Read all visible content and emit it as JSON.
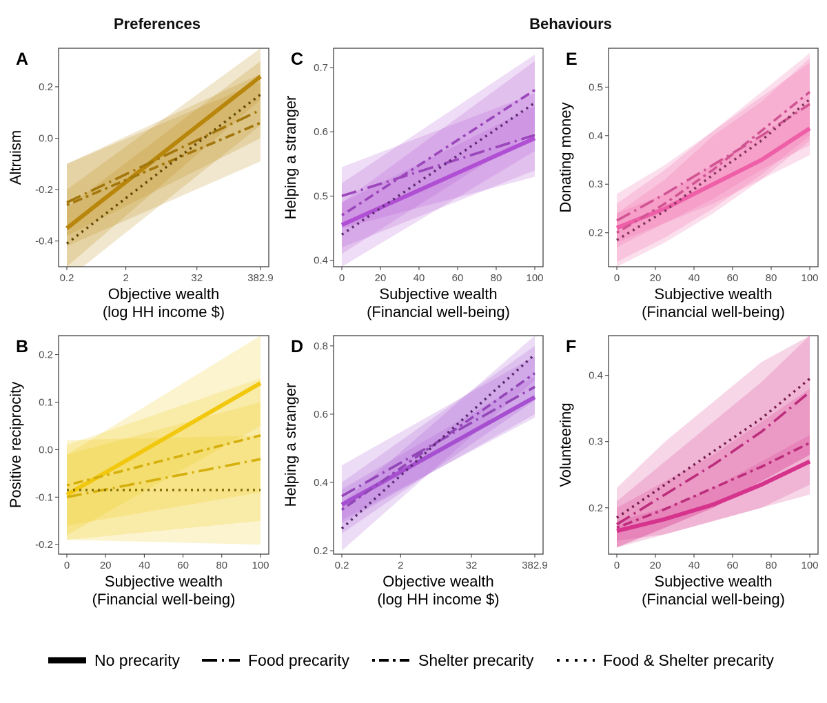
{
  "headers": {
    "left": "Preferences",
    "right": "Behaviours"
  },
  "legend": [
    {
      "label": "No precarity",
      "style": "solid"
    },
    {
      "label": "Food precarity",
      "style": "longdash-dot"
    },
    {
      "label": "Shelter precarity",
      "style": "dot-dash"
    },
    {
      "label": "Food & Shelter precarity",
      "style": "dotted"
    }
  ],
  "chart_data": [
    {
      "panel": "A",
      "type": "line",
      "color": "#b8860b",
      "xlabel": [
        "Objective wealth",
        "(log HH income $)"
      ],
      "ylabel": "Altruism",
      "x_scale": "log",
      "xlim": [
        0.2,
        382.9
      ],
      "ylim": [
        -0.5,
        0.35
      ],
      "xticks": [
        0.2,
        2,
        32,
        382.9
      ],
      "xtick_labels": [
        "0.2",
        "2",
        "32",
        "382.9"
      ],
      "yticks": [
        -0.4,
        -0.2,
        0.0,
        0.2
      ],
      "ytick_labels": [
        "-0.4",
        "-0.2",
        "0.0",
        "0.2"
      ],
      "series": [
        {
          "name": "No precarity",
          "x": [
            0.2,
            382.9
          ],
          "y": [
            -0.35,
            0.24
          ],
          "ci_low": [
            -0.5,
            0.15
          ],
          "ci_high": [
            -0.2,
            0.35
          ]
        },
        {
          "name": "Food precarity",
          "x": [
            0.2,
            382.9
          ],
          "y": [
            -0.25,
            0.11
          ],
          "ci_low": [
            -0.38,
            0.0
          ],
          "ci_high": [
            -0.1,
            0.25
          ]
        },
        {
          "name": "Shelter precarity",
          "x": [
            0.2,
            382.9
          ],
          "y": [
            -0.26,
            0.06
          ],
          "ci_low": [
            -0.42,
            -0.09
          ],
          "ci_high": [
            -0.1,
            0.22
          ]
        },
        {
          "name": "Food & Shelter precarity",
          "x": [
            0.2,
            382.9
          ],
          "y": [
            -0.41,
            0.17
          ],
          "ci_low": [
            -0.55,
            0.05
          ],
          "ci_high": [
            -0.27,
            0.3
          ]
        }
      ]
    },
    {
      "panel": "B",
      "type": "line",
      "color": "#f2c80f",
      "xlabel": [
        "Subjective wealth",
        "(Financial well-being)"
      ],
      "ylabel": "Positive reciprocity",
      "x_scale": "linear",
      "xlim": [
        0,
        100
      ],
      "ylim": [
        -0.22,
        0.24
      ],
      "xticks": [
        0,
        20,
        40,
        60,
        80,
        100
      ],
      "xtick_labels": [
        "0",
        "20",
        "40",
        "60",
        "80",
        "100"
      ],
      "yticks": [
        -0.2,
        -0.1,
        0.0,
        0.1,
        0.2
      ],
      "ytick_labels": [
        "-0.2",
        "-0.1",
        "0.0",
        "0.1",
        "0.2"
      ],
      "series": [
        {
          "name": "No precarity",
          "x": [
            0,
            100
          ],
          "y": [
            -0.095,
            0.14
          ],
          "ci_low": [
            -0.18,
            0.05
          ],
          "ci_high": [
            -0.01,
            0.24
          ]
        },
        {
          "name": "Food precarity",
          "x": [
            0,
            100
          ],
          "y": [
            -0.1,
            -0.02
          ],
          "ci_low": [
            -0.19,
            -0.15
          ],
          "ci_high": [
            -0.01,
            0.1
          ]
        },
        {
          "name": "Shelter precarity",
          "x": [
            0,
            100
          ],
          "y": [
            -0.075,
            0.03
          ],
          "ci_low": [
            -0.16,
            -0.09
          ],
          "ci_high": [
            0.01,
            0.15
          ]
        },
        {
          "name": "Food & Shelter precarity",
          "x": [
            0,
            100
          ],
          "y": [
            -0.085,
            -0.085
          ],
          "ci_low": [
            -0.19,
            -0.2
          ],
          "ci_high": [
            0.02,
            0.03
          ]
        }
      ]
    },
    {
      "panel": "C",
      "type": "line",
      "color": "#b04fd4",
      "xlabel": [
        "Subjective wealth",
        "(Financial well-being)"
      ],
      "ylabel": "Helping a stranger",
      "x_scale": "linear",
      "xlim": [
        0,
        100
      ],
      "ylim": [
        0.39,
        0.73
      ],
      "xticks": [
        0,
        20,
        40,
        60,
        80,
        100
      ],
      "xtick_labels": [
        "0",
        "20",
        "40",
        "60",
        "80",
        "100"
      ],
      "yticks": [
        0.4,
        0.5,
        0.6,
        0.7
      ],
      "ytick_labels": [
        "0.4",
        "0.5",
        "0.6",
        "0.7"
      ],
      "series": [
        {
          "name": "No precarity",
          "x": [
            0,
            100
          ],
          "y": [
            0.455,
            0.59
          ],
          "ci_low": [
            0.42,
            0.54
          ],
          "ci_high": [
            0.49,
            0.64
          ]
        },
        {
          "name": "Food precarity",
          "x": [
            0,
            100
          ],
          "y": [
            0.5,
            0.595
          ],
          "ci_low": [
            0.45,
            0.53
          ],
          "ci_high": [
            0.545,
            0.66
          ]
        },
        {
          "name": "Shelter precarity",
          "x": [
            0,
            100
          ],
          "y": [
            0.47,
            0.665
          ],
          "ci_low": [
            0.41,
            0.6
          ],
          "ci_high": [
            0.52,
            0.72
          ]
        },
        {
          "name": "Food & Shelter precarity",
          "x": [
            0,
            100
          ],
          "y": [
            0.44,
            0.645
          ],
          "ci_low": [
            0.39,
            0.57
          ],
          "ci_high": [
            0.49,
            0.71
          ]
        }
      ]
    },
    {
      "panel": "D",
      "type": "line",
      "color": "#a64fd0",
      "xlabel": [
        "Objective wealth",
        "(log HH income $)"
      ],
      "ylabel": "Helping a stranger",
      "x_scale": "log",
      "xlim": [
        0.2,
        382.9
      ],
      "ylim": [
        0.19,
        0.83
      ],
      "xticks": [
        0.2,
        2,
        32,
        382.9
      ],
      "xtick_labels": [
        "0.2",
        "2",
        "32",
        "382.9"
      ],
      "yticks": [
        0.2,
        0.4,
        0.6,
        0.8
      ],
      "ytick_labels": [
        "0.2",
        "0.4",
        "0.6",
        "0.8"
      ],
      "series": [
        {
          "name": "No precarity",
          "x": [
            0.2,
            382.9
          ],
          "y": [
            0.335,
            0.65
          ],
          "ci_low": [
            0.29,
            0.59
          ],
          "ci_high": [
            0.38,
            0.71
          ]
        },
        {
          "name": "Food precarity",
          "x": [
            0.2,
            382.9
          ],
          "y": [
            0.36,
            0.68
          ],
          "ci_low": [
            0.28,
            0.6
          ],
          "ci_high": [
            0.45,
            0.77
          ]
        },
        {
          "name": "Shelter precarity",
          "x": [
            0.2,
            382.9
          ],
          "y": [
            0.32,
            0.72
          ],
          "ci_low": [
            0.25,
            0.64
          ],
          "ci_high": [
            0.4,
            0.8
          ]
        },
        {
          "name": "Food & Shelter precarity",
          "x": [
            0.2,
            382.9
          ],
          "y": [
            0.265,
            0.775
          ],
          "ci_low": [
            0.2,
            0.7
          ],
          "ci_high": [
            0.34,
            0.83
          ]
        }
      ]
    },
    {
      "panel": "E",
      "type": "line",
      "color": "#ee5fa7",
      "xlabel": [
        "Subjective wealth",
        "(Financial well-being)"
      ],
      "ylabel": "Donating money",
      "x_scale": "linear",
      "xlim": [
        0,
        100
      ],
      "ylim": [
        0.13,
        0.58
      ],
      "xticks": [
        0,
        20,
        40,
        60,
        80,
        100
      ],
      "xtick_labels": [
        "0",
        "20",
        "40",
        "60",
        "80",
        "100"
      ],
      "yticks": [
        0.2,
        0.3,
        0.4,
        0.5
      ],
      "ytick_labels": [
        "0.2",
        "0.3",
        "0.4",
        "0.5"
      ],
      "series": [
        {
          "name": "No precarity",
          "x": [
            0,
            25,
            50,
            75,
            100
          ],
          "y": [
            0.21,
            0.25,
            0.3,
            0.35,
            0.415
          ],
          "ci_low": [
            0.18,
            0.22,
            0.26,
            0.31,
            0.36
          ],
          "ci_high": [
            0.24,
            0.28,
            0.34,
            0.4,
            0.47
          ]
        },
        {
          "name": "Food precarity",
          "x": [
            0,
            25,
            50,
            75,
            100
          ],
          "y": [
            0.225,
            0.28,
            0.34,
            0.4,
            0.465
          ],
          "ci_low": [
            0.17,
            0.22,
            0.27,
            0.33,
            0.38
          ],
          "ci_high": [
            0.28,
            0.34,
            0.41,
            0.48,
            0.55
          ]
        },
        {
          "name": "Shelter precarity",
          "x": [
            0,
            25,
            50,
            75,
            100
          ],
          "y": [
            0.2,
            0.26,
            0.33,
            0.41,
            0.49
          ],
          "ci_low": [
            0.14,
            0.19,
            0.25,
            0.32,
            0.4
          ],
          "ci_high": [
            0.26,
            0.33,
            0.41,
            0.49,
            0.57
          ]
        },
        {
          "name": "Food & Shelter precarity",
          "x": [
            0,
            25,
            50,
            75,
            100
          ],
          "y": [
            0.185,
            0.245,
            0.32,
            0.39,
            0.475
          ],
          "ci_low": [
            0.13,
            0.18,
            0.24,
            0.31,
            0.39
          ],
          "ci_high": [
            0.24,
            0.31,
            0.4,
            0.47,
            0.56
          ]
        }
      ]
    },
    {
      "panel": "F",
      "type": "line",
      "color": "#d6338d",
      "xlabel": [
        "Subjective wealth",
        "(Financial well-being)"
      ],
      "ylabel": "Volunteering",
      "x_scale": "linear",
      "xlim": [
        0,
        100
      ],
      "ylim": [
        0.13,
        0.46
      ],
      "xticks": [
        0,
        20,
        40,
        60,
        80,
        100
      ],
      "xtick_labels": [
        "0",
        "20",
        "40",
        "60",
        "80",
        "100"
      ],
      "yticks": [
        0.2,
        0.3,
        0.4
      ],
      "ytick_labels": [
        "0.2",
        "0.3",
        "0.4"
      ],
      "series": [
        {
          "name": "No precarity",
          "x": [
            0,
            25,
            50,
            75,
            100
          ],
          "y": [
            0.165,
            0.183,
            0.205,
            0.235,
            0.27
          ],
          "ci_low": [
            0.15,
            0.16,
            0.18,
            0.2,
            0.235
          ],
          "ci_high": [
            0.18,
            0.2,
            0.23,
            0.27,
            0.31
          ]
        },
        {
          "name": "Food precarity",
          "x": [
            0,
            25,
            50,
            75,
            100
          ],
          "y": [
            0.175,
            0.22,
            0.265,
            0.315,
            0.375
          ],
          "ci_low": [
            0.14,
            0.17,
            0.2,
            0.24,
            0.28
          ],
          "ci_high": [
            0.21,
            0.27,
            0.33,
            0.39,
            0.46
          ]
        },
        {
          "name": "Shelter precarity",
          "x": [
            0,
            25,
            50,
            75,
            100
          ],
          "y": [
            0.17,
            0.198,
            0.23,
            0.262,
            0.298
          ],
          "ci_low": [
            0.14,
            0.16,
            0.18,
            0.2,
            0.22
          ],
          "ci_high": [
            0.2,
            0.24,
            0.28,
            0.33,
            0.38
          ]
        },
        {
          "name": "Food & Shelter precarity",
          "x": [
            0,
            25,
            50,
            75,
            100
          ],
          "y": [
            0.185,
            0.235,
            0.285,
            0.335,
            0.395
          ],
          "ci_low": [
            0.14,
            0.17,
            0.2,
            0.24,
            0.28
          ],
          "ci_high": [
            0.23,
            0.3,
            0.36,
            0.42,
            0.46
          ]
        }
      ]
    }
  ]
}
